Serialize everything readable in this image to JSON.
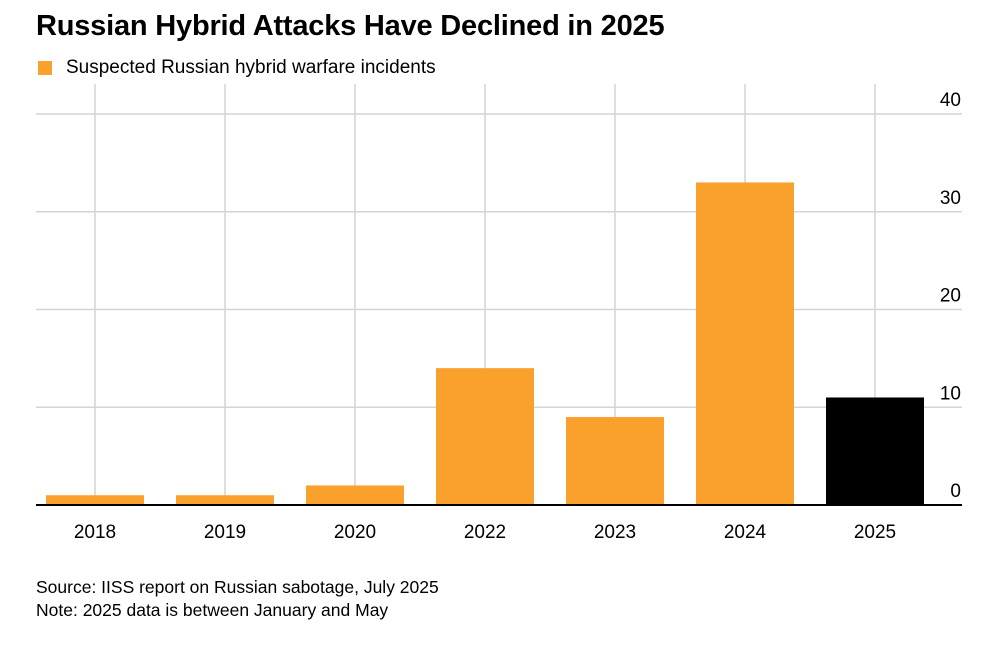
{
  "colors": {
    "primary": "#FAA02D",
    "highlight": "#000000",
    "grid": "#D4D4D4",
    "axis": "#000000"
  },
  "chart_data": {
    "type": "bar",
    "title": "Russian Hybrid Attacks Have Declined in 2025",
    "legend": {
      "position": "top-left",
      "entries": [
        "Suspected Russian hybrid warfare incidents"
      ]
    },
    "categories": [
      "2018",
      "2019",
      "2020",
      "2022",
      "2023",
      "2024",
      "2025"
    ],
    "series": [
      {
        "name": "Suspected Russian hybrid warfare incidents",
        "values": [
          1,
          1,
          2,
          14,
          9,
          33,
          11
        ]
      }
    ],
    "highlighted_category": "2025",
    "ylim": [
      0,
      40
    ],
    "yticks": [
      0,
      10,
      20,
      30,
      40
    ],
    "y_axis_side": "right",
    "grid": true
  },
  "footer": {
    "source": "Source: IISS report on Russian sabotage, July 2025",
    "note": "Note: 2025 data is between January and May"
  }
}
